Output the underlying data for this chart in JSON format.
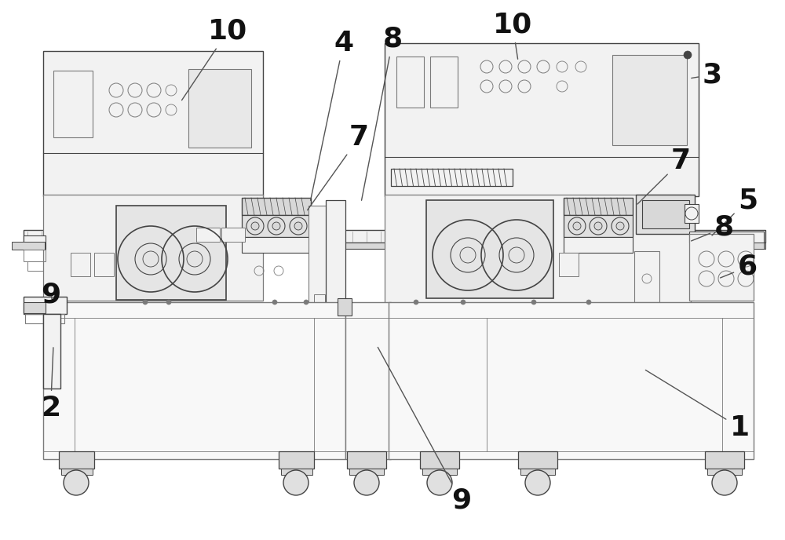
{
  "bg_color": "#ffffff",
  "lc": "#7a7a7a",
  "dc": "#444444",
  "mc": "#999999",
  "fc_main": "#f2f2f2",
  "fc_panel": "#ebebeb",
  "fc_dark": "#d8d8d8",
  "label_fontsize": 26,
  "label_color": "#111111",
  "line_lw": 0.8,
  "figsize": [
    10.0,
    6.88
  ],
  "dpi": 100
}
